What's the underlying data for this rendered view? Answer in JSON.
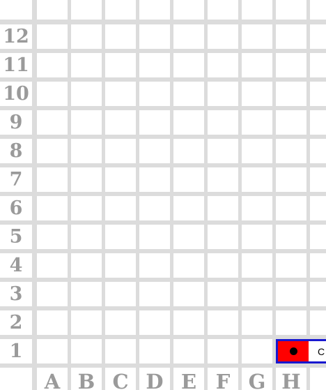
{
  "board": {
    "files": [
      "A",
      "B",
      "C",
      "D",
      "E",
      "F",
      "G",
      "H",
      ""
    ],
    "ranks": [
      "",
      "12",
      "11",
      "10",
      "9",
      "8",
      "7",
      "6",
      "5",
      "4",
      "3",
      "2",
      "1"
    ],
    "grid_color": "#dcdcdc",
    "cell_color": "#ffffff",
    "label_color": "#9a9a9a"
  },
  "piece": {
    "rank": "1",
    "file": "H",
    "label": "C",
    "fill_color": "#ff0000",
    "border_color": "#1818d0",
    "marker_color": "#000000"
  }
}
